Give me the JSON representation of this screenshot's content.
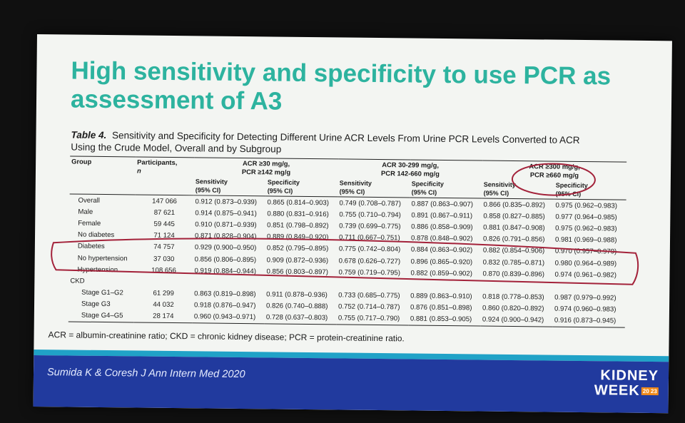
{
  "slide": {
    "title": "High sensitivity and specificity to use PCR as assessment of A3",
    "caption_label": "Table 4.",
    "caption_text": "Sensitivity and Specificity for Detecting Different Urine ACR Levels From Urine PCR Levels Converted to ACR Using the Crude Model, Overall and by Subgroup",
    "footnote": "ACR = albumin-creatinine ratio; CKD = chronic kidney disease; PCR = protein-creatinine ratio.",
    "citation": "Sumida K & Coresh J Ann Intern Med 2020",
    "brand_line1": "KIDNEY",
    "brand_line2": "WEEK",
    "brand_year": "20 23"
  },
  "table": {
    "group_header": "Group",
    "participants_header": "Participants,",
    "participants_sub": "n",
    "acr_groups": [
      {
        "label": "ACR ≥30 mg/g,",
        "sub": "PCR ≥142 mg/g"
      },
      {
        "label": "ACR 30-299 mg/g,",
        "sub": "PCR 142-660 mg/g"
      },
      {
        "label": "ACR ≥300 mg/g,",
        "sub": "PCR ≥660 mg/g"
      }
    ],
    "sens_label": "Sensitivity",
    "spec_label": "Specificity",
    "ci_label": "(95% CI)",
    "rows": [
      {
        "group": "Overall",
        "n": "147 066",
        "c1": "0.912 (0.873–0.939)",
        "c2": "0.865 (0.814–0.903)",
        "c3": "0.749 (0.708–0.787)",
        "c4": "0.887 (0.863–0.907)",
        "c5": "0.866 (0.835–0.892)",
        "c6": "0.975 (0.962–0.983)"
      },
      {
        "group": "Male",
        "n": "87 621",
        "c1": "0.914 (0.875–0.941)",
        "c2": "0.880 (0.831–0.916)",
        "c3": "0.755 (0.710–0.794)",
        "c4": "0.891 (0.867–0.911)",
        "c5": "0.858 (0.827–0.885)",
        "c6": "0.977 (0.964–0.985)"
      },
      {
        "group": "Female",
        "n": "59 445",
        "c1": "0.910 (0.871–0.939)",
        "c2": "0.851 (0.798–0.892)",
        "c3": "0.739 (0.699–0.775)",
        "c4": "0.886 (0.858–0.909)",
        "c5": "0.881 (0.847–0.908)",
        "c6": "0.975 (0.962–0.983)"
      },
      {
        "group": "No diabetes",
        "n": "71 124",
        "c1": "0.871 (0.828–0.904)",
        "c2": "0.889 (0.849–0.920)",
        "c3": "0.711 (0.667–0.751)",
        "c4": "0.878 (0.848–0.902)",
        "c5": "0.826 (0.791–0.856)",
        "c6": "0.981 (0.969–0.988)"
      },
      {
        "group": "Diabetes",
        "n": "74 757",
        "c1": "0.929 (0.900–0.950)",
        "c2": "0.852 (0.795–0.895)",
        "c3": "0.775 (0.742–0.804)",
        "c4": "0.884 (0.863–0.902)",
        "c5": "0.882 (0.854–0.906)",
        "c6": "0.970 (0.957–0.979)"
      },
      {
        "group": "No hypertension",
        "n": "37 030",
        "c1": "0.856 (0.806–0.895)",
        "c2": "0.909 (0.872–0.936)",
        "c3": "0.678 (0.626–0.727)",
        "c4": "0.896 (0.865–0.920)",
        "c5": "0.832 (0.785–0.871)",
        "c6": "0.980 (0.964–0.989)"
      },
      {
        "group": "Hypertension",
        "n": "108 656",
        "c1": "0.919 (0.884–0.944)",
        "c2": "0.856 (0.803–0.897)",
        "c3": "0.759 (0.719–0.795)",
        "c4": "0.882 (0.859–0.902)",
        "c5": "0.870 (0.839–0.896)",
        "c6": "0.974 (0.961–0.982)"
      },
      {
        "group": "CKD",
        "n": "",
        "c1": "",
        "c2": "",
        "c3": "",
        "c4": "",
        "c5": "",
        "c6": ""
      },
      {
        "group": "Stage G1–G2",
        "n": "61 299",
        "c1": "0.863 (0.819–0.898)",
        "c2": "0.911 (0.878–0.936)",
        "c3": "0.733 (0.685–0.775)",
        "c4": "0.889 (0.863–0.910)",
        "c5": "0.818 (0.778–0.853)",
        "c6": "0.987 (0.979–0.992)"
      },
      {
        "group": "Stage G3",
        "n": "44 032",
        "c1": "0.918 (0.876–0.947)",
        "c2": "0.826 (0.740–0.888)",
        "c3": "0.752 (0.714–0.787)",
        "c4": "0.876 (0.851–0.898)",
        "c5": "0.860 (0.820–0.892)",
        "c6": "0.974 (0.960–0.983)"
      },
      {
        "group": "Stage G4–G5",
        "n": "28 174",
        "c1": "0.960 (0.943–0.971)",
        "c2": "0.728 (0.637–0.803)",
        "c3": "0.755 (0.717–0.790)",
        "c4": "0.881 (0.853–0.905)",
        "c5": "0.924 (0.900–0.942)",
        "c6": "0.916 (0.873–0.945)"
      }
    ]
  },
  "colors": {
    "title": "#2db39f",
    "footer": "#213a9e",
    "stripe": "#20a2c7",
    "ink": "#a3223a",
    "brand_badge": "#f08a1c"
  }
}
